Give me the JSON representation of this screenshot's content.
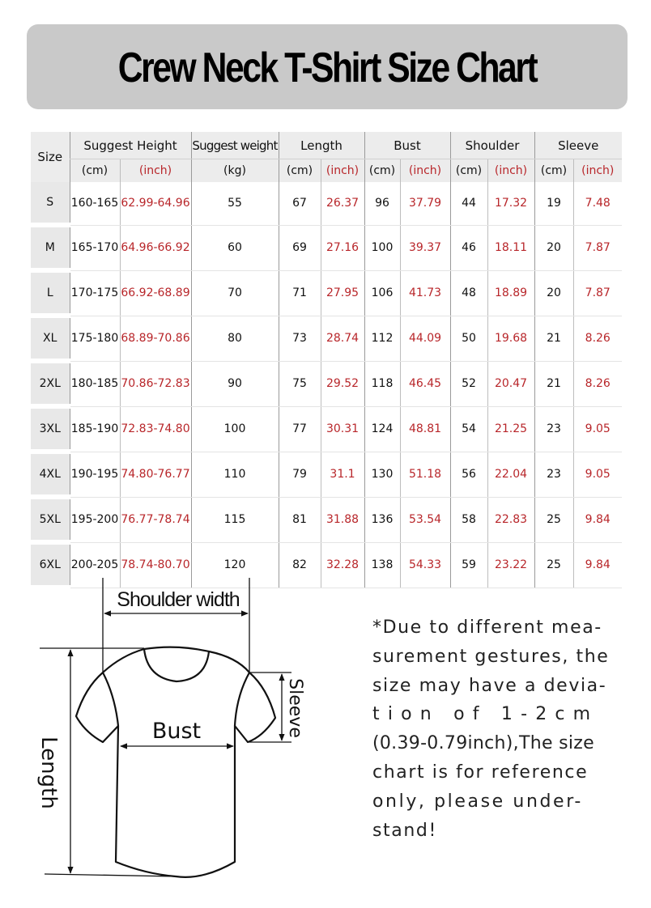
{
  "title": "Crew Neck T-Shirt Size Chart",
  "colors": {
    "banner": "#c9c9c9",
    "inch_text": "#b8262a",
    "cm_text": "#111111"
  },
  "table": {
    "headers": {
      "size": "Size",
      "height": "Suggest Height",
      "weight": "Suggest weight",
      "length": "Length",
      "bust": "Bust",
      "shoulder": "Shoulder",
      "sleeve": "Sleeve"
    },
    "units": {
      "cm": "(cm)",
      "inch": "(inch)",
      "kg": "(kg)"
    },
    "rows": [
      {
        "size": "S",
        "height_cm": "160-165",
        "height_in": "62.99-64.96",
        "weight": "55",
        "length_cm": "67",
        "length_in": "26.37",
        "bust_cm": "96",
        "bust_in": "37.79",
        "shoulder_cm": "44",
        "shoulder_in": "17.32",
        "sleeve_cm": "19",
        "sleeve_in": "7.48"
      },
      {
        "size": "M",
        "height_cm": "165-170",
        "height_in": "64.96-66.92",
        "weight": "60",
        "length_cm": "69",
        "length_in": "27.16",
        "bust_cm": "100",
        "bust_in": "39.37",
        "shoulder_cm": "46",
        "shoulder_in": "18.11",
        "sleeve_cm": "20",
        "sleeve_in": "7.87"
      },
      {
        "size": "L",
        "height_cm": "170-175",
        "height_in": "66.92-68.89",
        "weight": "70",
        "length_cm": "71",
        "length_in": "27.95",
        "bust_cm": "106",
        "bust_in": "41.73",
        "shoulder_cm": "48",
        "shoulder_in": "18.89",
        "sleeve_cm": "20",
        "sleeve_in": "7.87"
      },
      {
        "size": "XL",
        "height_cm": "175-180",
        "height_in": "68.89-70.86",
        "weight": "80",
        "length_cm": "73",
        "length_in": "28.74",
        "bust_cm": "112",
        "bust_in": "44.09",
        "shoulder_cm": "50",
        "shoulder_in": "19.68",
        "sleeve_cm": "21",
        "sleeve_in": "8.26"
      },
      {
        "size": "2XL",
        "height_cm": "180-185",
        "height_in": "70.86-72.83",
        "weight": "90",
        "length_cm": "75",
        "length_in": "29.52",
        "bust_cm": "118",
        "bust_in": "46.45",
        "shoulder_cm": "52",
        "shoulder_in": "20.47",
        "sleeve_cm": "21",
        "sleeve_in": "8.26"
      },
      {
        "size": "3XL",
        "height_cm": "185-190",
        "height_in": "72.83-74.80",
        "weight": "100",
        "length_cm": "77",
        "length_in": "30.31",
        "bust_cm": "124",
        "bust_in": "48.81",
        "shoulder_cm": "54",
        "shoulder_in": "21.25",
        "sleeve_cm": "23",
        "sleeve_in": "9.05"
      },
      {
        "size": "4XL",
        "height_cm": "190-195",
        "height_in": "74.80-76.77",
        "weight": "110",
        "length_cm": "79",
        "length_in": "31.1",
        "bust_cm": "130",
        "bust_in": "51.18",
        "shoulder_cm": "56",
        "shoulder_in": "22.04",
        "sleeve_cm": "23",
        "sleeve_in": "9.05"
      },
      {
        "size": "5XL",
        "height_cm": "195-200",
        "height_in": "76.77-78.74",
        "weight": "115",
        "length_cm": "81",
        "length_in": "31.88",
        "bust_cm": "136",
        "bust_in": "53.54",
        "shoulder_cm": "58",
        "shoulder_in": "22.83",
        "sleeve_cm": "25",
        "sleeve_in": "9.84"
      },
      {
        "size": "6XL",
        "height_cm": "200-205",
        "height_in": "78.74-80.70",
        "weight": "120",
        "length_cm": "82",
        "length_in": "32.28",
        "bust_cm": "138",
        "bust_in": "54.33",
        "shoulder_cm": "59",
        "shoulder_in": "23.22",
        "sleeve_cm": "25",
        "sleeve_in": "9.84"
      }
    ]
  },
  "diagram": {
    "shoulder_label": "Shoulder width",
    "bust_label": "Bust",
    "length_label": "Length",
    "sleeve_label": "Sleeve"
  },
  "note": {
    "lines": [
      "*Due to different mea-",
      "surement gestures, the",
      "size may have a devia-",
      "t i o n   o f   1 - 2 c m",
      "(0.39-0.79inch),The size",
      "chart is for reference",
      "only, please under-",
      "stand!"
    ]
  }
}
